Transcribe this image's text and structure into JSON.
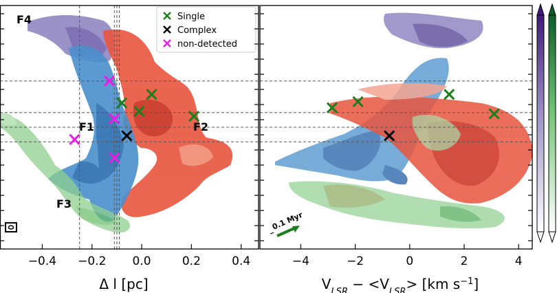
{
  "colors": {
    "single": "#1a7f1a",
    "complex": "#000000",
    "non_detected": "#e81ee8",
    "F1": "#2f7fc1",
    "F2": "#e8503a",
    "F3": "#7fc97f",
    "F4": "#7b6bb3",
    "colorbar_top": "#3f1a7a",
    "colorbar_green_top": "#0b5e2a"
  },
  "chart_data": [
    {
      "type": "scatter",
      "panel": "left",
      "xlabel": "Δ l [pc]",
      "ylabel": "",
      "xlim": [
        -0.57,
        0.47
      ],
      "xticks": [
        -0.4,
        -0.2,
        0.0,
        0.2,
        0.4
      ],
      "xtick_labels": [
        "−0.4",
        "−0.2",
        "0.0",
        "0.2",
        "0.4"
      ],
      "region_labels": [
        "F1",
        "F2",
        "F3",
        "F4"
      ],
      "beam_icon": "beam-ellipse-icon",
      "reference_vlines": [
        -0.25,
        -0.11,
        -0.1,
        -0.09
      ],
      "reference_hlines": [
        0.69,
        0.56,
        0.5,
        0.44
      ],
      "legend": {
        "placement": "upper-right",
        "entries": [
          {
            "label": "Single",
            "marker": "x",
            "color": "#1a7f1a"
          },
          {
            "label": "Complex",
            "marker": "x",
            "color": "#000000"
          },
          {
            "label": "non-detected",
            "marker": "x",
            "color": "#e81ee8"
          }
        ]
      },
      "markers": {
        "single": [
          [
            -0.08,
            0.6
          ],
          [
            0.04,
            0.635
          ],
          [
            -0.01,
            0.565
          ],
          [
            0.21,
            0.545
          ]
        ],
        "complex": [
          [
            -0.06,
            0.465
          ]
        ],
        "non_detected": [
          [
            -0.13,
            0.69
          ],
          [
            -0.11,
            0.535
          ],
          [
            -0.27,
            0.45
          ],
          [
            -0.11,
            0.375
          ]
        ]
      }
    },
    {
      "type": "scatter",
      "panel": "right",
      "xlabel": "V_LSR − <V_LSR> [km s−1]",
      "ylabel": "",
      "xlim": [
        -5.5,
        4.5
      ],
      "xticks": [
        -4,
        -2,
        0,
        2,
        4
      ],
      "xtick_labels": [
        "−4",
        "−2",
        "0",
        "2",
        "4"
      ],
      "annotation": "0.1 Myr",
      "reference_hlines": [
        0.69,
        0.56,
        0.5,
        0.44
      ],
      "markers": {
        "single": [
          [
            -2.85,
            0.58
          ],
          [
            -1.9,
            0.605
          ],
          [
            1.45,
            0.635
          ],
          [
            3.1,
            0.555
          ]
        ],
        "complex": [
          [
            -0.75,
            0.465
          ]
        ]
      }
    }
  ]
}
